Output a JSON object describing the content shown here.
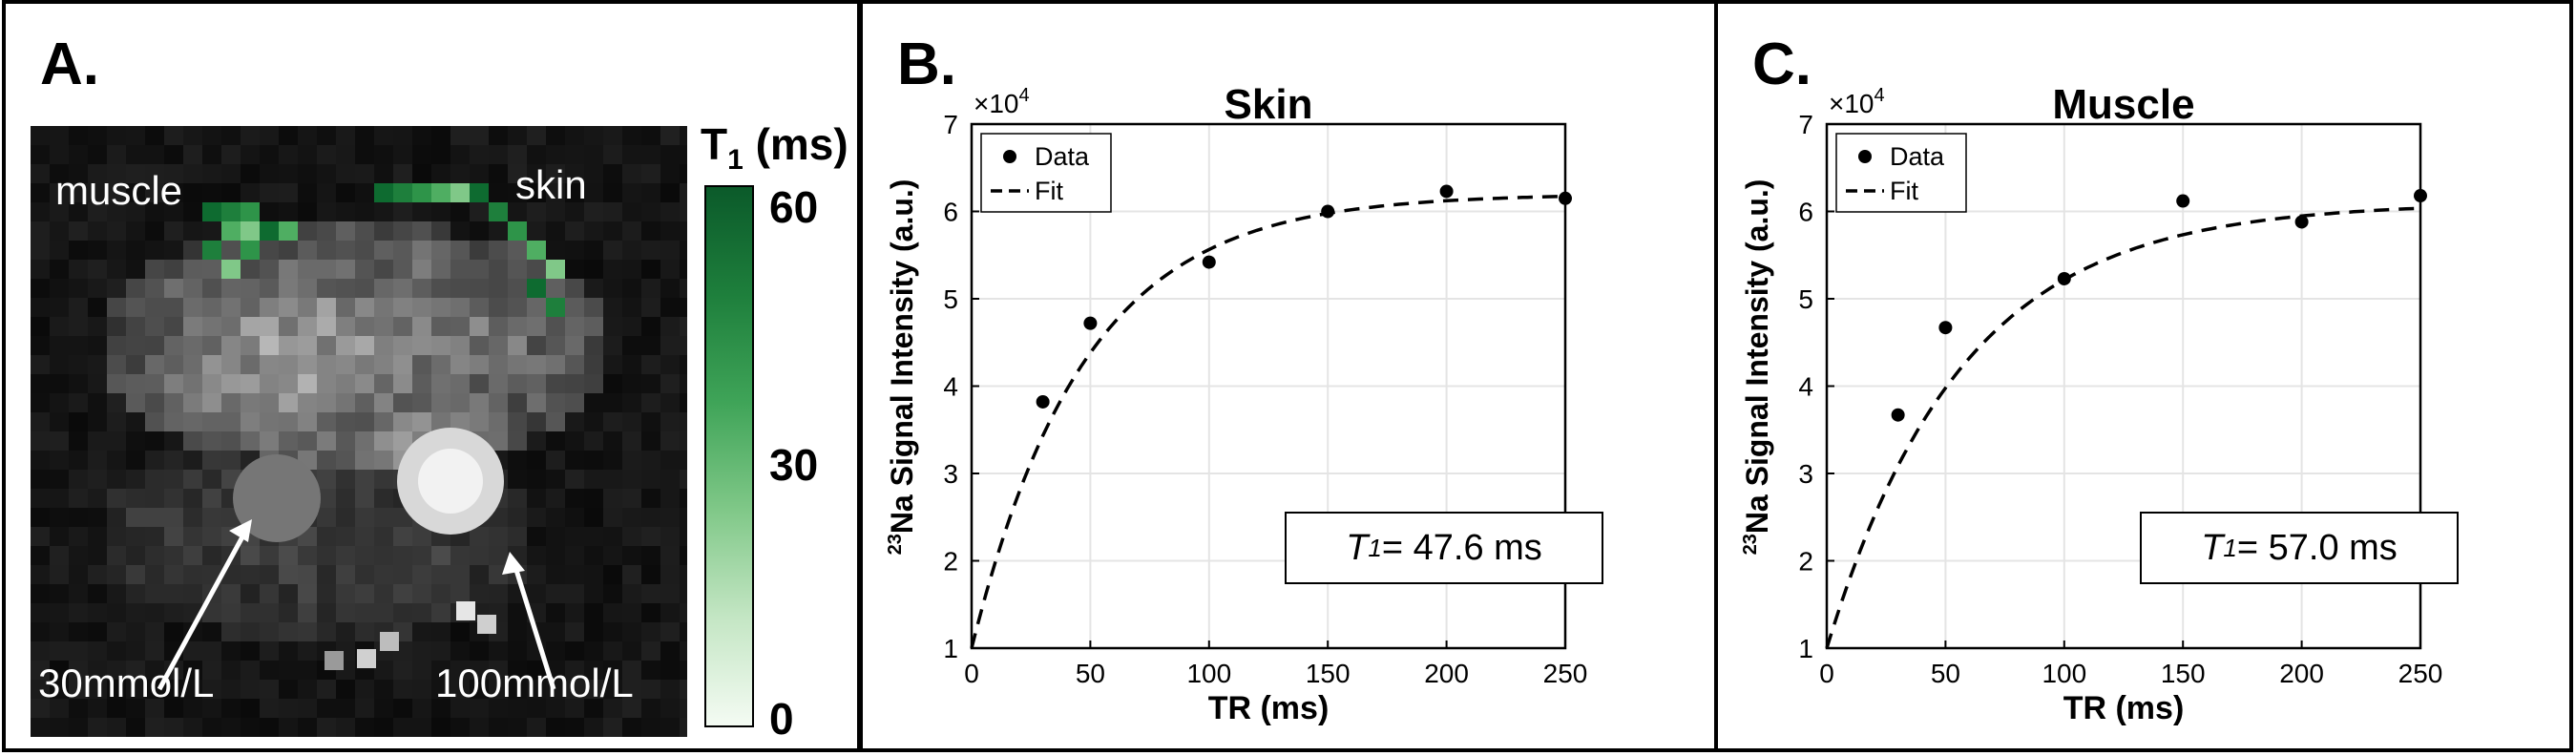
{
  "panel_a": {
    "letter": "A.",
    "labels": {
      "muscle": "muscle",
      "skin": "skin",
      "low": "30mmol/L",
      "high": "100mmol/L"
    },
    "colorbar": {
      "title_main": "T",
      "title_sub": "1",
      "title_unit": " (ms)",
      "ticks": [
        "60",
        "30",
        "0"
      ],
      "colors": [
        "#0b5a2a",
        "#3fa458",
        "#f4fbf3"
      ]
    }
  },
  "panel_b": {
    "letter": "B.",
    "t1_label": "T",
    "t1_sub": "1",
    "t1_value": " = 47.6 ms"
  },
  "panel_c": {
    "letter": "C.",
    "t1_label": "T",
    "t1_sub": "1",
    "t1_value": " = 57.0 ms"
  },
  "chart_data": [
    {
      "type": "scatter",
      "title": "Skin",
      "xlabel": "TR (ms)",
      "ylabel_sup": "23",
      "ylabel": "Na Signal Intensity (a.u.)",
      "exponent_label": "×10",
      "exponent_sup": "4",
      "xlim": [
        0,
        250
      ],
      "ylim": [
        1,
        7
      ],
      "xticks": [
        0,
        50,
        100,
        150,
        200,
        250
      ],
      "yticks": [
        1,
        2,
        3,
        4,
        5,
        6,
        7
      ],
      "grid": true,
      "legend_position": "top-left",
      "series": [
        {
          "name": "Data",
          "style": "markers",
          "x": [
            30,
            50,
            100,
            150,
            200,
            250
          ],
          "y": [
            3.82,
            4.72,
            5.42,
            6.0,
            6.23,
            6.15
          ]
        },
        {
          "name": "Fit",
          "style": "dashed",
          "model": {
            "s0": 6.2,
            "t1": 47.6
          }
        }
      ]
    },
    {
      "type": "scatter",
      "title": "Muscle",
      "xlabel": "TR (ms)",
      "ylabel_sup": "23",
      "ylabel": "Na Signal Intensity (a.u.)",
      "exponent_label": "×10",
      "exponent_sup": "4",
      "xlim": [
        0,
        250
      ],
      "ylim": [
        1,
        7
      ],
      "xticks": [
        0,
        50,
        100,
        150,
        200,
        250
      ],
      "yticks": [
        1,
        2,
        3,
        4,
        5,
        6,
        7
      ],
      "grid": true,
      "legend_position": "top-left",
      "series": [
        {
          "name": "Data",
          "style": "markers",
          "x": [
            30,
            50,
            100,
            150,
            200,
            250
          ],
          "y": [
            3.67,
            4.67,
            5.23,
            6.12,
            5.88,
            6.18
          ]
        },
        {
          "name": "Fit",
          "style": "dashed",
          "model": {
            "s0": 6.1,
            "t1": 57.0
          }
        }
      ]
    }
  ]
}
